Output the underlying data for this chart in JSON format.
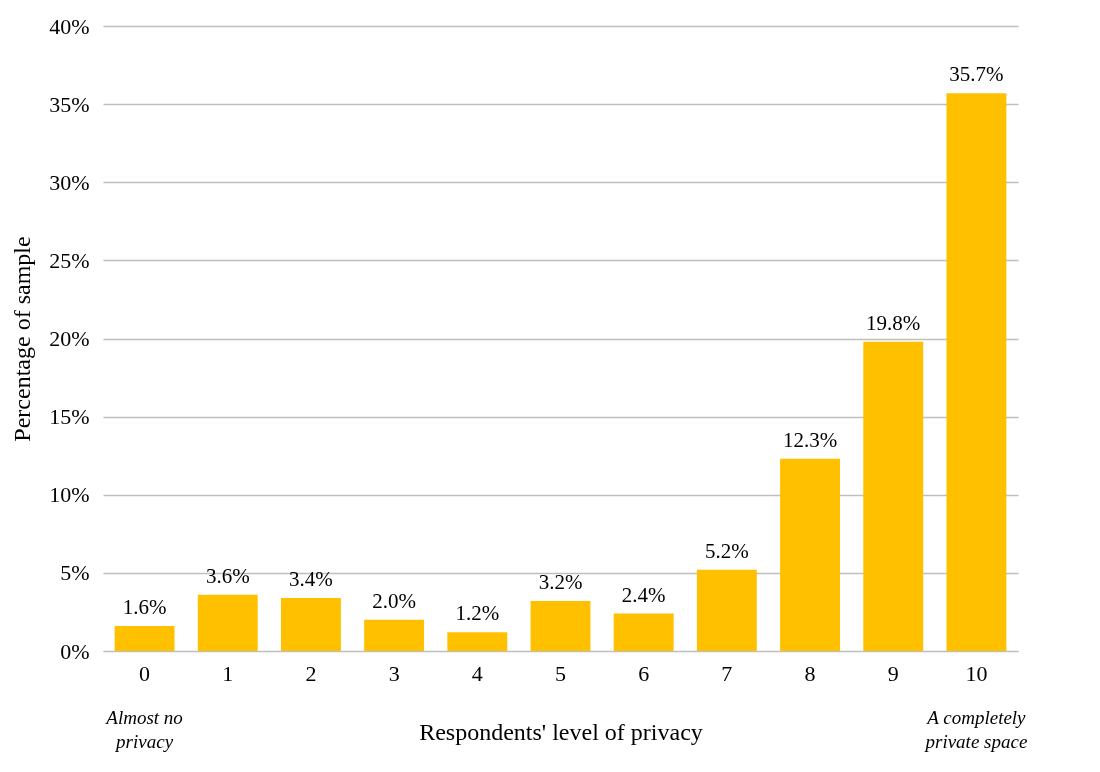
{
  "chart_data": {
    "type": "bar",
    "xlabel": "Respondents' level of privacy",
    "ylabel": "Percentage of sample",
    "categories": [
      "0",
      "1",
      "2",
      "3",
      "4",
      "5",
      "6",
      "7",
      "8",
      "9",
      "10"
    ],
    "values": [
      1.6,
      3.6,
      3.4,
      2.0,
      1.2,
      3.2,
      2.4,
      5.2,
      12.3,
      19.8,
      35.7
    ],
    "value_labels": [
      "1.6%",
      "3.6%",
      "3.4%",
      "2.0%",
      "1.2%",
      "3.2%",
      "2.4%",
      "5.2%",
      "12.3%",
      "19.8%",
      "35.7%"
    ],
    "color": "#ffc000",
    "ylim": [
      0,
      40
    ],
    "yticks": [
      {
        "value": 0,
        "label": "0%"
      },
      {
        "value": 5,
        "label": "5%"
      },
      {
        "value": 10,
        "label": "10%"
      },
      {
        "value": 15,
        "label": "15%"
      },
      {
        "value": 20,
        "label": "20%"
      },
      {
        "value": 25,
        "label": "25%"
      },
      {
        "value": 30,
        "label": "30%"
      },
      {
        "value": 35,
        "label": "35%"
      },
      {
        "value": 40,
        "label": "40%"
      }
    ],
    "grid": "y",
    "annotations": [
      "Almost no privacy",
      "A completely private space"
    ]
  }
}
